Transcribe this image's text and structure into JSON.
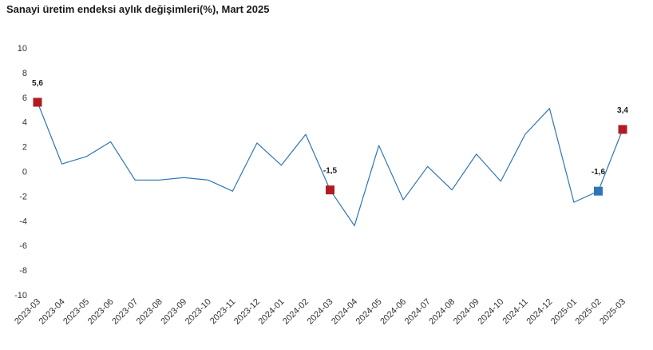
{
  "chart_data": {
    "type": "line",
    "title": "Sanayi üretim endeksi aylık değişimleri(%), Mart 2025",
    "xlabel": "",
    "ylabel": "",
    "ylim": [
      -10,
      10
    ],
    "yticks": [
      "10",
      "8",
      "6",
      "4",
      "2",
      "0",
      "-2",
      "-4",
      "-6",
      "-8",
      "-10"
    ],
    "grid": false,
    "categories": [
      "2023-03",
      "2023-04",
      "2023-05",
      "2023-06",
      "2023-07",
      "2023-08",
      "2023-09",
      "2023-10",
      "2023-11",
      "2023-12",
      "2024-01",
      "2024-02",
      "2024-03",
      "2024-04",
      "2024-05",
      "2024-06",
      "2024-07",
      "2024-08",
      "2024-09",
      "2024-10",
      "2024-11",
      "2024-12",
      "2025-01",
      "2025-02",
      "2025-03"
    ],
    "series": [
      {
        "color": "#2e75b6",
        "values": [
          5.6,
          0.6,
          1.2,
          2.4,
          -0.7,
          -0.7,
          -0.5,
          -0.7,
          -1.6,
          2.3,
          0.5,
          3.0,
          -1.5,
          -4.4,
          2.1,
          -2.3,
          0.4,
          -1.5,
          1.4,
          -0.8,
          3.0,
          5.1,
          -2.5,
          -1.6,
          3.4
        ]
      }
    ],
    "highlights": [
      {
        "category": "2023-03",
        "label": "5,6",
        "color": "#b01c22"
      },
      {
        "category": "2024-03",
        "label": "-1,5",
        "color": "#b01c22"
      },
      {
        "category": "2025-02",
        "label": "-1,6",
        "color": "#2e75b6"
      },
      {
        "category": "2025-03",
        "label": "3,4",
        "color": "#b01c22"
      }
    ]
  }
}
